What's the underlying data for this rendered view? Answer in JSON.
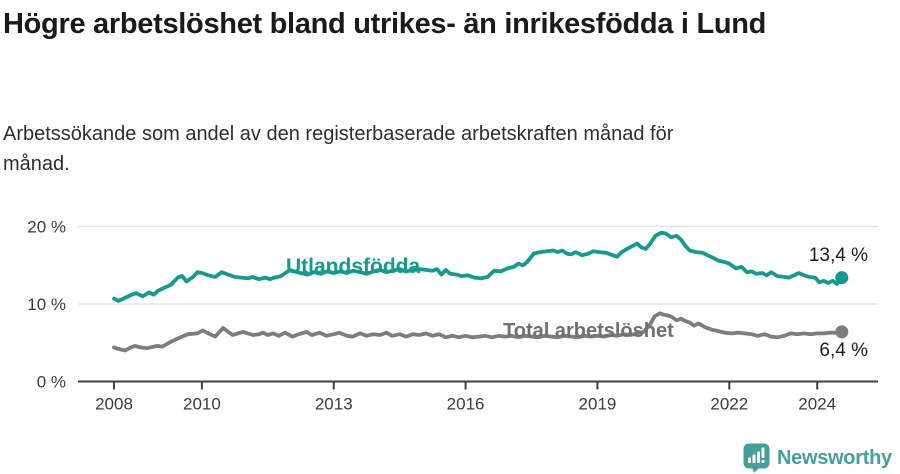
{
  "header": {
    "title": "Högre arbetslöshet bland utrikes- än inrikesfödda i Lund",
    "subtitle": "Arbetssökande som andel av den registerbaserade arbetskraften månad för månad."
  },
  "chart_data": {
    "type": "line",
    "title": "Högre arbetslöshet bland utrikes- än inrikesfödda i Lund",
    "subtitle": "Arbetssökande som andel av den registerbaserade arbetskraften månad för månad.",
    "unit": "%",
    "grid": "horizontal",
    "legend_position": "inline-labels",
    "x_axis": {
      "ticks": [
        2008,
        2010,
        2013,
        2016,
        2019,
        2022,
        2024
      ],
      "tick_labels": [
        "2008",
        "2010",
        "2013",
        "2016",
        "2019",
        "2022",
        "2024"
      ],
      "range": [
        2007.2,
        2025.4
      ]
    },
    "y_axis": {
      "ticks": [
        0,
        10,
        20
      ],
      "tick_labels": [
        "0 %",
        "10 %",
        "20 %"
      ],
      "range": [
        0,
        21.5
      ]
    },
    "series": [
      {
        "name": "Utlandsfödda",
        "color": "#129c8d",
        "end_value": 13.4,
        "end_label": "13,4 %",
        "points": [
          [
            2008.0,
            10.7
          ],
          [
            2008.1,
            10.4
          ],
          [
            2008.25,
            10.8
          ],
          [
            2008.4,
            11.2
          ],
          [
            2008.5,
            11.4
          ],
          [
            2008.65,
            11.0
          ],
          [
            2008.8,
            11.5
          ],
          [
            2008.9,
            11.2
          ],
          [
            2009.0,
            11.7
          ],
          [
            2009.15,
            12.1
          ],
          [
            2009.3,
            12.5
          ],
          [
            2009.45,
            13.4
          ],
          [
            2009.55,
            13.6
          ],
          [
            2009.65,
            12.9
          ],
          [
            2009.8,
            13.5
          ],
          [
            2009.9,
            14.1
          ],
          [
            2010.0,
            14.0
          ],
          [
            2010.15,
            13.7
          ],
          [
            2010.3,
            13.5
          ],
          [
            2010.45,
            14.1
          ],
          [
            2010.6,
            13.8
          ],
          [
            2010.75,
            13.5
          ],
          [
            2010.9,
            13.4
          ],
          [
            2011.05,
            13.3
          ],
          [
            2011.15,
            13.5
          ],
          [
            2011.3,
            13.2
          ],
          [
            2011.45,
            13.4
          ],
          [
            2011.55,
            13.2
          ],
          [
            2011.65,
            13.4
          ],
          [
            2011.8,
            13.6
          ],
          [
            2011.9,
            14.0
          ],
          [
            2012.0,
            14.4
          ],
          [
            2012.1,
            14.2
          ],
          [
            2012.25,
            14.0
          ],
          [
            2012.4,
            13.8
          ],
          [
            2012.55,
            14.1
          ],
          [
            2012.7,
            13.9
          ],
          [
            2012.85,
            14.2
          ],
          [
            2013.0,
            14.0
          ],
          [
            2013.15,
            14.2
          ],
          [
            2013.3,
            14.0
          ],
          [
            2013.45,
            14.3
          ],
          [
            2013.6,
            14.1
          ],
          [
            2013.75,
            13.9
          ],
          [
            2013.9,
            14.2
          ],
          [
            2014.05,
            14.4
          ],
          [
            2014.2,
            14.1
          ],
          [
            2014.35,
            14.3
          ],
          [
            2014.5,
            14.5
          ],
          [
            2014.65,
            14.2
          ],
          [
            2014.8,
            14.4
          ],
          [
            2014.95,
            14.5
          ],
          [
            2015.1,
            14.4
          ],
          [
            2015.25,
            14.3
          ],
          [
            2015.35,
            14.5
          ],
          [
            2015.45,
            13.8
          ],
          [
            2015.55,
            14.4
          ],
          [
            2015.65,
            13.9
          ],
          [
            2015.8,
            13.8
          ],
          [
            2015.9,
            13.6
          ],
          [
            2016.05,
            13.7
          ],
          [
            2016.2,
            13.4
          ],
          [
            2016.35,
            13.3
          ],
          [
            2016.5,
            13.5
          ],
          [
            2016.65,
            14.3
          ],
          [
            2016.8,
            14.2
          ],
          [
            2016.95,
            14.6
          ],
          [
            2017.1,
            14.8
          ],
          [
            2017.2,
            15.2
          ],
          [
            2017.3,
            15.0
          ],
          [
            2017.4,
            15.4
          ],
          [
            2017.55,
            16.5
          ],
          [
            2017.7,
            16.7
          ],
          [
            2017.85,
            16.8
          ],
          [
            2018.0,
            16.9
          ],
          [
            2018.1,
            16.7
          ],
          [
            2018.2,
            16.9
          ],
          [
            2018.3,
            16.5
          ],
          [
            2018.4,
            16.4
          ],
          [
            2018.5,
            16.7
          ],
          [
            2018.65,
            16.3
          ],
          [
            2018.8,
            16.5
          ],
          [
            2018.9,
            16.8
          ],
          [
            2019.05,
            16.7
          ],
          [
            2019.2,
            16.6
          ],
          [
            2019.35,
            16.3
          ],
          [
            2019.45,
            16.1
          ],
          [
            2019.55,
            16.7
          ],
          [
            2019.7,
            17.2
          ],
          [
            2019.8,
            17.5
          ],
          [
            2019.9,
            17.8
          ],
          [
            2020.0,
            17.3
          ],
          [
            2020.1,
            17.1
          ],
          [
            2020.2,
            17.8
          ],
          [
            2020.32,
            18.8
          ],
          [
            2020.45,
            19.2
          ],
          [
            2020.55,
            19.1
          ],
          [
            2020.68,
            18.6
          ],
          [
            2020.8,
            18.8
          ],
          [
            2020.9,
            18.3
          ],
          [
            2021.0,
            17.5
          ],
          [
            2021.1,
            16.9
          ],
          [
            2021.25,
            16.7
          ],
          [
            2021.4,
            16.6
          ],
          [
            2021.5,
            16.3
          ],
          [
            2021.62,
            16.0
          ],
          [
            2021.75,
            15.6
          ],
          [
            2021.9,
            15.4
          ],
          [
            2022.0,
            15.2
          ],
          [
            2022.15,
            14.6
          ],
          [
            2022.28,
            14.8
          ],
          [
            2022.4,
            14.1
          ],
          [
            2022.5,
            14.2
          ],
          [
            2022.62,
            13.9
          ],
          [
            2022.75,
            14.0
          ],
          [
            2022.85,
            13.7
          ],
          [
            2022.95,
            14.1
          ],
          [
            2023.1,
            13.6
          ],
          [
            2023.25,
            13.5
          ],
          [
            2023.35,
            13.4
          ],
          [
            2023.48,
            13.7
          ],
          [
            2023.58,
            14.0
          ],
          [
            2023.7,
            13.7
          ],
          [
            2023.82,
            13.5
          ],
          [
            2023.95,
            13.4
          ],
          [
            2024.05,
            12.8
          ],
          [
            2024.15,
            13.0
          ],
          [
            2024.25,
            12.7
          ],
          [
            2024.35,
            13.0
          ],
          [
            2024.45,
            12.6
          ],
          [
            2024.52,
            12.9
          ],
          [
            2024.56,
            13.4
          ]
        ]
      },
      {
        "name": "Total arbetslöshet",
        "color": "#7d7d81",
        "end_value": 6.4,
        "end_label": "6,4 %",
        "points": [
          [
            2008.0,
            4.4
          ],
          [
            2008.1,
            4.2
          ],
          [
            2008.25,
            4.0
          ],
          [
            2008.38,
            4.4
          ],
          [
            2008.48,
            4.6
          ],
          [
            2008.6,
            4.4
          ],
          [
            2008.75,
            4.3
          ],
          [
            2008.98,
            4.6
          ],
          [
            2009.1,
            4.5
          ],
          [
            2009.32,
            5.2
          ],
          [
            2009.55,
            5.8
          ],
          [
            2009.68,
            6.1
          ],
          [
            2009.89,
            6.2
          ],
          [
            2010.02,
            6.6
          ],
          [
            2010.15,
            6.2
          ],
          [
            2010.3,
            5.8
          ],
          [
            2010.48,
            6.9
          ],
          [
            2010.6,
            6.4
          ],
          [
            2010.7,
            6.0
          ],
          [
            2010.93,
            6.4
          ],
          [
            2011.05,
            6.2
          ],
          [
            2011.16,
            6.0
          ],
          [
            2011.3,
            6.1
          ],
          [
            2011.39,
            6.3
          ],
          [
            2011.5,
            6.0
          ],
          [
            2011.62,
            6.2
          ],
          [
            2011.75,
            5.9
          ],
          [
            2011.89,
            6.3
          ],
          [
            2012.06,
            5.8
          ],
          [
            2012.2,
            6.1
          ],
          [
            2012.38,
            6.4
          ],
          [
            2012.5,
            6.0
          ],
          [
            2012.68,
            6.3
          ],
          [
            2012.83,
            5.9
          ],
          [
            2013.0,
            6.1
          ],
          [
            2013.13,
            6.3
          ],
          [
            2013.3,
            5.9
          ],
          [
            2013.43,
            5.8
          ],
          [
            2013.6,
            6.2
          ],
          [
            2013.75,
            5.9
          ],
          [
            2013.9,
            6.1
          ],
          [
            2014.05,
            6.0
          ],
          [
            2014.2,
            6.3
          ],
          [
            2014.33,
            5.9
          ],
          [
            2014.5,
            6.1
          ],
          [
            2014.65,
            5.8
          ],
          [
            2014.8,
            6.1
          ],
          [
            2014.95,
            6.0
          ],
          [
            2015.1,
            6.2
          ],
          [
            2015.25,
            5.9
          ],
          [
            2015.4,
            6.1
          ],
          [
            2015.55,
            5.7
          ],
          [
            2015.7,
            5.9
          ],
          [
            2015.85,
            5.7
          ],
          [
            2016.0,
            5.9
          ],
          [
            2016.15,
            5.7
          ],
          [
            2016.3,
            5.8
          ],
          [
            2016.45,
            5.9
          ],
          [
            2016.6,
            5.7
          ],
          [
            2016.75,
            5.9
          ],
          [
            2016.9,
            5.8
          ],
          [
            2017.05,
            5.9
          ],
          [
            2017.2,
            5.7
          ],
          [
            2017.35,
            5.9
          ],
          [
            2017.5,
            5.8
          ],
          [
            2017.65,
            5.7
          ],
          [
            2017.8,
            5.9
          ],
          [
            2017.95,
            5.8
          ],
          [
            2018.1,
            5.7
          ],
          [
            2018.25,
            5.9
          ],
          [
            2018.4,
            5.8
          ],
          [
            2018.55,
            5.7
          ],
          [
            2018.7,
            5.9
          ],
          [
            2018.85,
            5.8
          ],
          [
            2019.0,
            5.9
          ],
          [
            2019.15,
            5.8
          ],
          [
            2019.3,
            6.0
          ],
          [
            2019.45,
            5.9
          ],
          [
            2019.6,
            6.1
          ],
          [
            2019.75,
            6.0
          ],
          [
            2019.9,
            6.2
          ],
          [
            2020.05,
            6.4
          ],
          [
            2020.2,
            7.4
          ],
          [
            2020.3,
            8.4
          ],
          [
            2020.42,
            8.8
          ],
          [
            2020.52,
            8.6
          ],
          [
            2020.62,
            8.5
          ],
          [
            2020.7,
            8.3
          ],
          [
            2020.8,
            7.9
          ],
          [
            2020.9,
            8.1
          ],
          [
            2021.0,
            7.8
          ],
          [
            2021.1,
            7.6
          ],
          [
            2021.2,
            7.2
          ],
          [
            2021.3,
            7.5
          ],
          [
            2021.45,
            7.0
          ],
          [
            2021.6,
            6.7
          ],
          [
            2021.75,
            6.5
          ],
          [
            2021.9,
            6.3
          ],
          [
            2022.05,
            6.2
          ],
          [
            2022.2,
            6.3
          ],
          [
            2022.35,
            6.2
          ],
          [
            2022.5,
            6.1
          ],
          [
            2022.65,
            5.9
          ],
          [
            2022.8,
            6.1
          ],
          [
            2022.95,
            5.8
          ],
          [
            2023.1,
            5.7
          ],
          [
            2023.25,
            5.9
          ],
          [
            2023.4,
            6.2
          ],
          [
            2023.55,
            6.1
          ],
          [
            2023.7,
            6.2
          ],
          [
            2023.85,
            6.1
          ],
          [
            2024.0,
            6.2
          ],
          [
            2024.15,
            6.2
          ],
          [
            2024.3,
            6.3
          ],
          [
            2024.45,
            6.3
          ],
          [
            2024.56,
            6.4
          ]
        ]
      }
    ]
  },
  "branding": {
    "name": "Newsworthy",
    "color": "#43a19a"
  }
}
